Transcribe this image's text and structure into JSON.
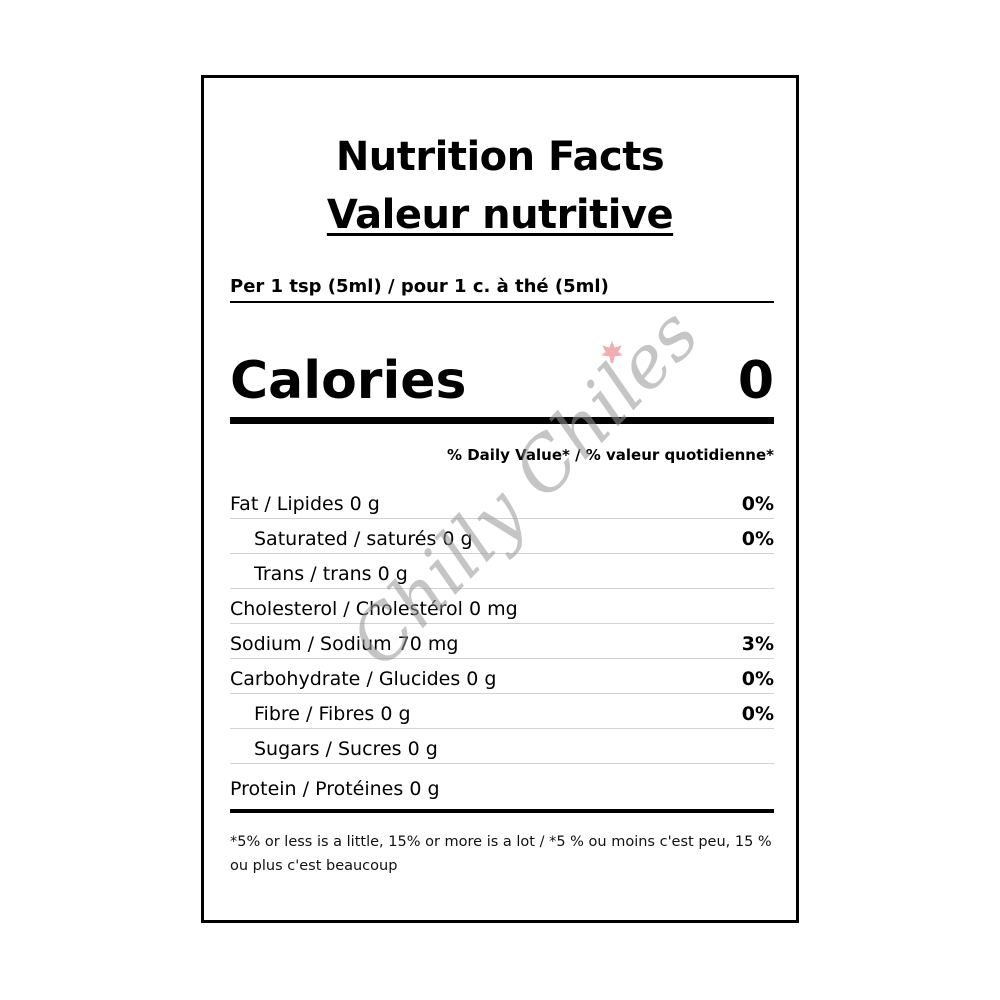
{
  "title_en": "Nutrition Facts",
  "title_fr": "Valeur nutritive",
  "serving": "Per 1 tsp (5ml) / pour 1 c. à thé (5ml)",
  "calories": {
    "label": "Calories",
    "value": "0"
  },
  "dv_header": "% Daily Value* / % valeur quotidienne*",
  "rows": [
    {
      "label": "Fat / Lipides 0 g",
      "pct": "0%"
    },
    {
      "label": "Saturated / saturés 0 g",
      "pct": "0%"
    },
    {
      "label": "Trans / trans 0 g",
      "pct": ""
    },
    {
      "label": "Cholesterol / Cholestérol 0 mg",
      "pct": ""
    },
    {
      "label": "Sodium / Sodium 70 mg",
      "pct": "3%"
    },
    {
      "label": "Carbohydrate / Glucides 0 g",
      "pct": "0%"
    },
    {
      "label": "Fibre / Fibres 0 g",
      "pct": "0%"
    },
    {
      "label": "Sugars / Sucres 0 g",
      "pct": ""
    },
    {
      "label": "Protein / Protéines 0 g",
      "pct": ""
    }
  ],
  "footnote": "*5% or less is a little, 15% or more is a lot / *5 % ou moins c'est peu, 15 % ou plus c'est beaucoup",
  "watermark": "Chilly Chiles"
}
